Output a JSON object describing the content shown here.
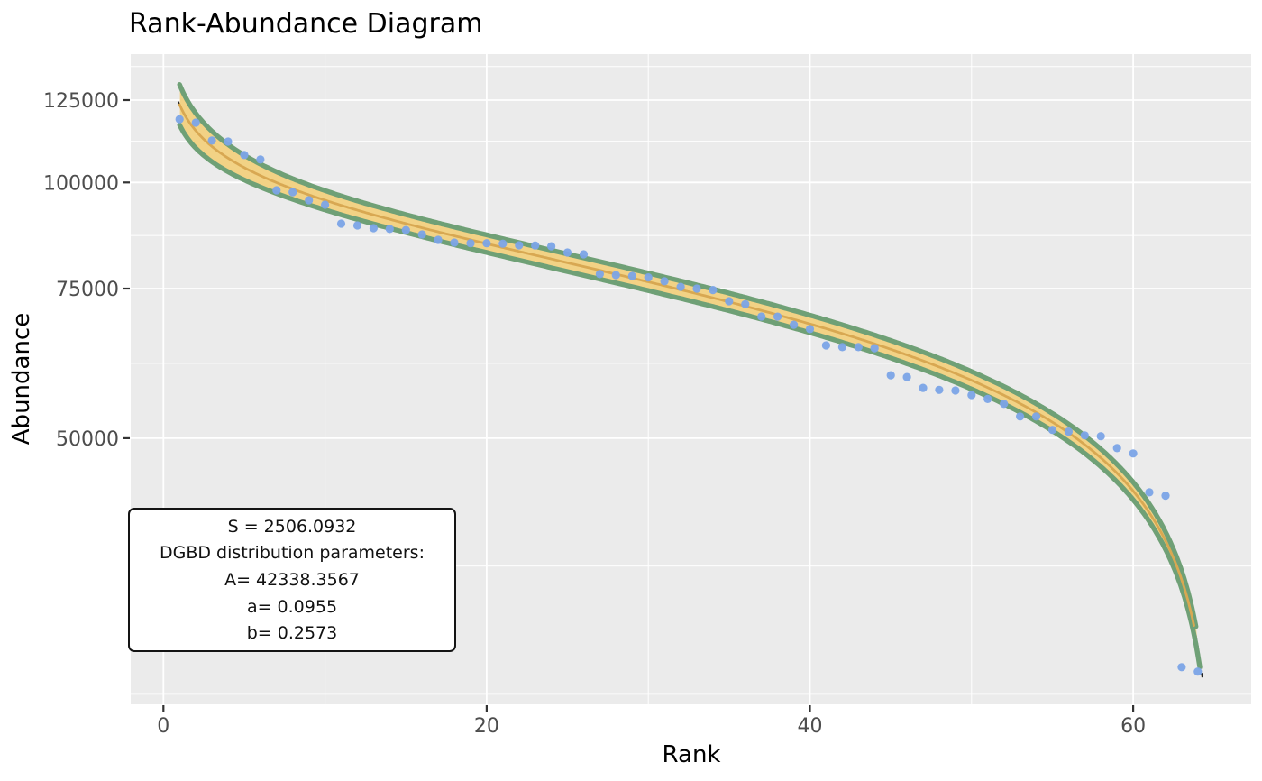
{
  "chart_data": {
    "type": "scatter",
    "title": "Rank-Abundance Diagram",
    "xlabel": "Rank",
    "ylabel": "Abundance",
    "y_scale": "log",
    "x_range": [
      -2,
      67.5
    ],
    "y_range": [
      24000,
      142000
    ],
    "x_ticks": {
      "major": [
        0,
        20,
        40,
        60
      ],
      "minor": [
        10,
        30,
        50
      ],
      "labels": [
        "0",
        "20",
        "40",
        "60"
      ]
    },
    "y_ticks": {
      "major": [
        25000,
        50000,
        75000,
        100000,
        125000
      ],
      "labeled": [
        50000,
        75000,
        100000,
        125000
      ],
      "labels": [
        "50000",
        "75000",
        "100000",
        "125000"
      ],
      "minor": [
        35355,
        61237,
        86603,
        111803,
        136931
      ]
    },
    "grid": "on",
    "abundance": [
      118700,
      117600,
      112000,
      111700,
      107700,
      106400,
      97900,
      97400,
      95300,
      94150,
      89430,
      89000,
      88350,
      88150,
      87900,
      86850,
      85580,
      84950,
      84800,
      84800,
      84700,
      84330,
      84300,
      84100,
      82700,
      82300,
      78000,
      77800,
      77600,
      77300,
      76500,
      75350,
      75000,
      74700,
      72470,
      71900,
      69530,
      69500,
      68000,
      67200,
      64300,
      64000,
      64000,
      63800,
      59300,
      59000,
      57300,
      57000,
      56900,
      56200,
      55600,
      54880,
      53030,
      53030,
      51130,
      50900,
      50380,
      50260,
      48670,
      47970,
      43180,
      42790,
      26880,
      26560
    ],
    "fit": {
      "model": "DGBD",
      "formula": "A*(N+1-r)^b / r^a",
      "A": 42338.3567,
      "a": 0.0955,
      "b": 0.2573,
      "N": 64,
      "S": 2506.0932
    }
  },
  "annotation": {
    "lines": [
      "S = 2506.0932",
      "DGBD distribution parameters:",
      "A= 42338.3567",
      "a= 0.0955",
      "b= 0.2573"
    ]
  },
  "colors": {
    "point": "#7BA4E7",
    "band_fill": "#F2D285",
    "band_center": "#D8A852",
    "band_edge": "#6FA076",
    "dashed_line": "#222222",
    "panel": "#EBEBEB",
    "grid": "#FFFFFF",
    "tick_mark": "#333333",
    "tick_label": "#4D4D4D",
    "text": "#000000"
  }
}
